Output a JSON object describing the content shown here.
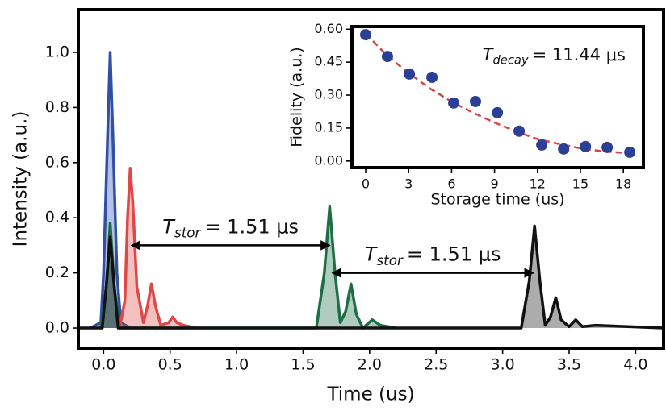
{
  "chart_data": [
    {
      "type": "line",
      "x_label": "Time (us)",
      "y_label": "Intensity (a.u.)",
      "xlim": [
        -0.19,
        4.21
      ],
      "ylim": [
        -0.073,
        1.155
      ],
      "xticks": [
        {
          "value": 0,
          "label": "0.0"
        },
        {
          "value": 0.5,
          "label": "0.5"
        },
        {
          "value": 1,
          "label": "1.0"
        },
        {
          "value": 1.5,
          "label": "1.5"
        },
        {
          "value": 2,
          "label": "2.0"
        },
        {
          "value": 2.5,
          "label": "2.5"
        },
        {
          "value": 3,
          "label": "3.0"
        },
        {
          "value": 3.5,
          "label": "3.5"
        },
        {
          "value": 4,
          "label": "4.0"
        }
      ],
      "yticks": [
        {
          "value": 0,
          "label": "0.0"
        },
        {
          "value": 0.2,
          "label": "0.2"
        },
        {
          "value": 0.4,
          "label": "0.4"
        },
        {
          "value": 0.6,
          "label": "0.6"
        },
        {
          "value": 0.8,
          "label": "0.8"
        },
        {
          "value": 1,
          "label": "1.0"
        }
      ],
      "series": [
        {
          "color": "#2f4fa8",
          "x": [
            -0.1,
            -0.02,
            0.0,
            0.03,
            0.05,
            0.07,
            0.1,
            0.13,
            0.2
          ],
          "values": [
            0,
            0.02,
            0.2,
            0.7,
            1.0,
            0.7,
            0.2,
            0.02,
            0
          ]
        },
        {
          "color": "#e04848",
          "x": [
            0.12,
            0.16,
            0.18,
            0.2,
            0.22,
            0.25,
            0.3,
            0.33,
            0.36,
            0.39,
            0.43,
            0.49,
            0.52,
            0.55,
            0.6,
            0.7
          ],
          "values": [
            0,
            0.1,
            0.4,
            0.58,
            0.45,
            0.15,
            0.02,
            0.08,
            0.16,
            0.08,
            0.01,
            0.02,
            0.04,
            0.02,
            0.01,
            0
          ]
        },
        {
          "color": "#1e6e45",
          "x": [
            -0.02,
            0.02,
            0.05,
            0.08,
            0.12,
            1.6,
            1.66,
            1.7,
            1.74,
            1.78,
            1.82,
            1.86,
            1.9,
            1.95,
            2.02,
            2.08,
            2.2
          ],
          "values": [
            0,
            0.15,
            0.38,
            0.15,
            0,
            0,
            0.2,
            0.44,
            0.2,
            0.02,
            0.06,
            0.16,
            0.05,
            0,
            0.03,
            0.01,
            0
          ]
        },
        {
          "color": "#111111",
          "x": [
            -0.19,
            -0.01,
            0.02,
            0.05,
            0.08,
            0.11,
            3.14,
            3.2,
            3.24,
            3.28,
            3.32,
            3.36,
            3.4,
            3.44,
            3.5,
            3.55,
            3.6,
            3.7,
            4.21
          ],
          "values": [
            0,
            0,
            0.15,
            0.33,
            0.15,
            0,
            0,
            0.17,
            0.37,
            0.17,
            0.01,
            0.04,
            0.11,
            0.03,
            0.005,
            0.03,
            0.005,
            0.01,
            0
          ]
        }
      ],
      "arrows": [
        {
          "from": 0.21,
          "to": 1.7,
          "y": 0.3,
          "symbol": "T",
          "subscript": "stor",
          "text": "= 1.51 μs"
        },
        {
          "from": 1.72,
          "to": 3.23,
          "y": 0.2,
          "symbol": "T",
          "subscript": "stor",
          "text": "= 1.51 μs"
        }
      ]
    },
    {
      "type": "scatter",
      "x_label": "Storage time (us)",
      "y_label": "Fidelity (a.u.)",
      "xlim": [
        -0.96,
        19.4
      ],
      "ylim": [
        -0.03,
        0.612
      ],
      "xticks": [
        0,
        3,
        6,
        9,
        12,
        15,
        18
      ],
      "yticks": [
        {
          "value": 0,
          "label": "0.00"
        },
        {
          "value": 0.15,
          "label": "0.15"
        },
        {
          "value": 0.3,
          "label": "0.30"
        },
        {
          "value": 0.45,
          "label": "0.45"
        },
        {
          "value": 0.6,
          "label": "0.60"
        }
      ],
      "annotation": {
        "symbol": "T",
        "subscript": "decay",
        "text": "= 11.44 μs"
      },
      "series": [
        {
          "color": "#d94545",
          "style": "dashed",
          "x": [
            0,
            1.5,
            3,
            4.5,
            6,
            7.5,
            9,
            10.5,
            12,
            13.5,
            15,
            16.5,
            18.5
          ],
          "values": [
            0.58,
            0.48,
            0.4,
            0.33,
            0.27,
            0.22,
            0.175,
            0.135,
            0.1,
            0.078,
            0.058,
            0.045,
            0.035
          ]
        },
        {
          "color": "#2b3f97",
          "style": "markers",
          "x": [
            0,
            1.52,
            3.05,
            4.63,
            6.15,
            7.67,
            9.2,
            10.72,
            12.3,
            13.83,
            15.35,
            16.87,
            18.45
          ],
          "values": [
            0.575,
            0.476,
            0.396,
            0.381,
            0.264,
            0.271,
            0.22,
            0.136,
            0.073,
            0.055,
            0.066,
            0.062,
            0.04
          ]
        }
      ]
    }
  ]
}
